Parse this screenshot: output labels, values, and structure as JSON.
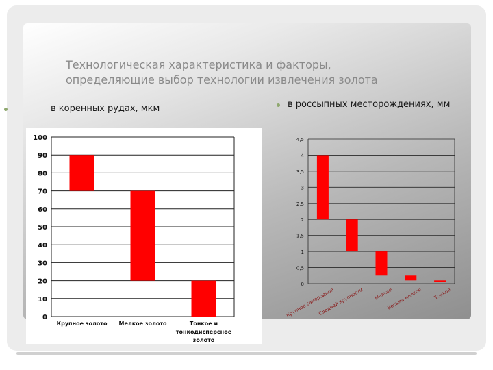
{
  "title": {
    "line1": "Технологическая характеристика и факторы,",
    "line2": "определяющие выбор технологии извлечения золота"
  },
  "bullets": {
    "left": "в коренных рудах, мкм",
    "right": "в россыпных месторождениях, мм"
  },
  "colors": {
    "bar": "#ff0000",
    "bullet_dot": "#8fa86f"
  },
  "chart_data": [
    {
      "type": "bar",
      "style": "floating",
      "categories": [
        "Крупное золото",
        "Мелкое золото",
        "Тонкое и тонкодисперсное золото"
      ],
      "ranges": [
        [
          70,
          90
        ],
        [
          20,
          70
        ],
        [
          0,
          20
        ]
      ],
      "ylim": [
        0,
        100
      ],
      "yticks": [
        "0",
        "10",
        "20",
        "30",
        "40",
        "50",
        "60",
        "70",
        "80",
        "90",
        "100"
      ],
      "grid": true
    },
    {
      "type": "bar",
      "style": "floating",
      "categories": [
        "Крупное самородное",
        "Средней крупности",
        "Мелкое",
        "Весьма мелкое",
        "Тонкое"
      ],
      "ranges": [
        [
          2,
          4
        ],
        [
          1,
          2
        ],
        [
          0.25,
          1
        ],
        [
          0.1,
          0.25
        ],
        [
          0.05,
          0.1
        ]
      ],
      "ylim": [
        0,
        4.5
      ],
      "yticks": [
        "0",
        "0,5",
        "1",
        "1,5",
        "2",
        "2,5",
        "3",
        "3,5",
        "4",
        "4,5"
      ],
      "grid": true
    }
  ]
}
